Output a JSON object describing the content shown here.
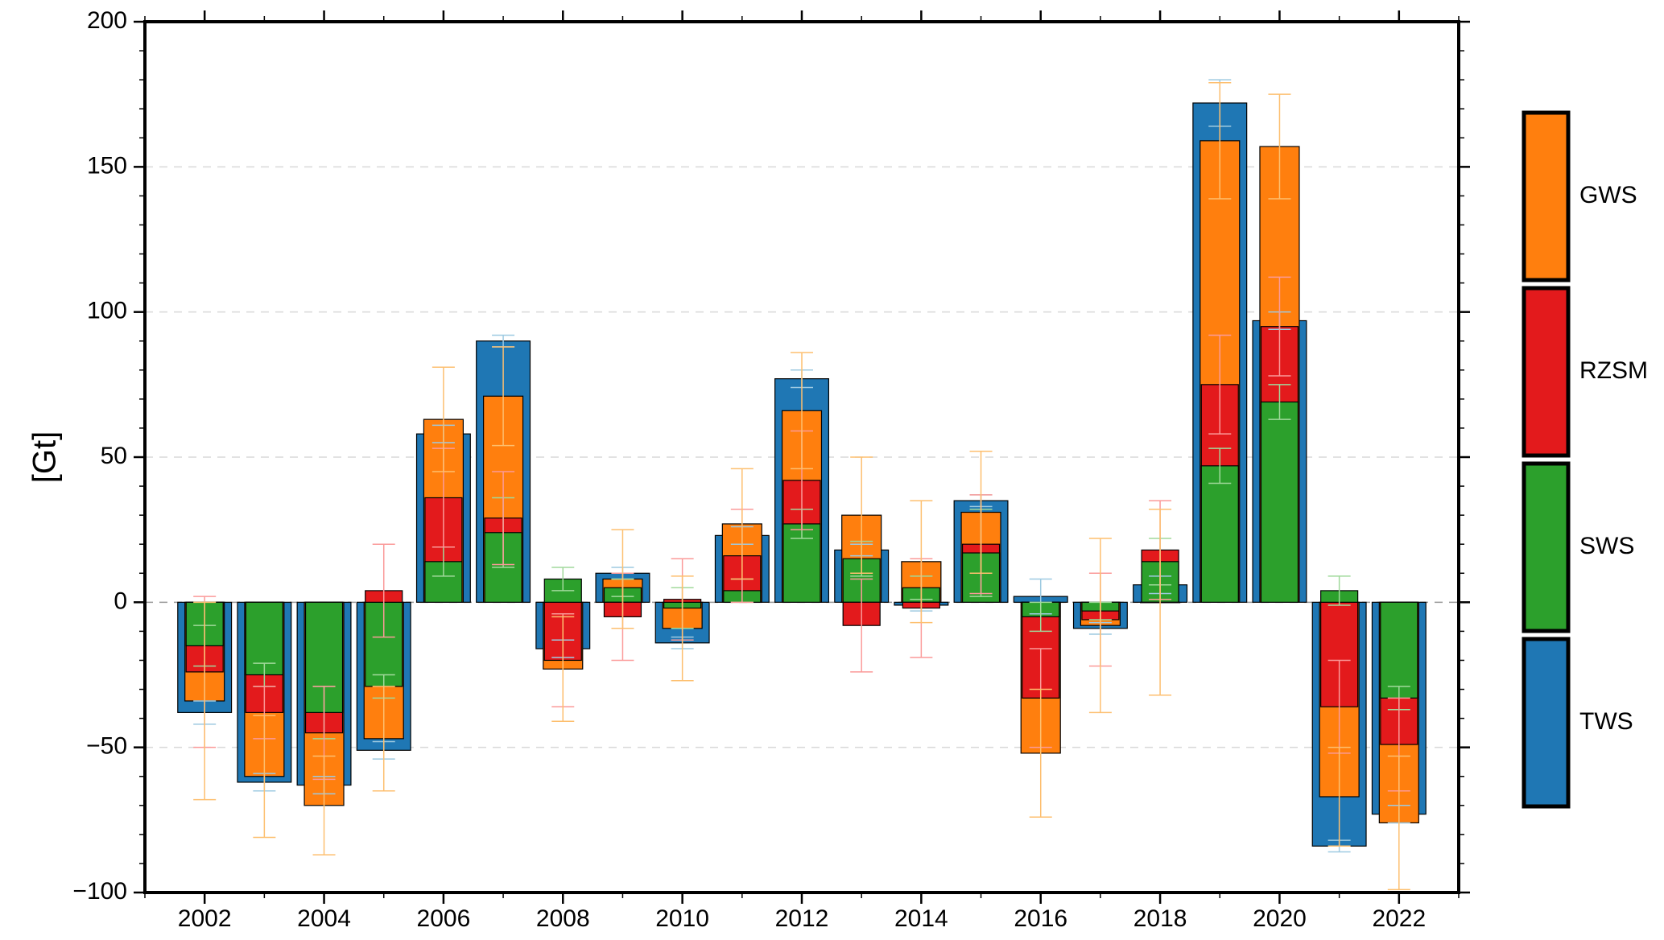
{
  "chart_data": {
    "type": "bar",
    "title": "",
    "xlabel": "",
    "ylabel": "[Gt]",
    "ylim": [
      -100,
      200
    ],
    "yticks": [
      -100,
      -50,
      0,
      50,
      100,
      150,
      200
    ],
    "xlim": [
      2001,
      2023
    ],
    "xtick_labels": [
      "2002",
      "2004",
      "2006",
      "2008",
      "2010",
      "2012",
      "2014",
      "2016",
      "2018",
      "2020",
      "2022"
    ],
    "grid": "horizontal dashed",
    "legend_position": "right",
    "years": [
      2002,
      2003,
      2004,
      2005,
      2006,
      2007,
      2008,
      2009,
      2010,
      2011,
      2012,
      2013,
      2014,
      2015,
      2016,
      2017,
      2018,
      2019,
      2020,
      2021,
      2022
    ],
    "series": [
      {
        "name": "TWS",
        "color": "#1f77b4",
        "errcolor": "#9ecae1",
        "values": [
          -38,
          -62,
          -63,
          -51,
          58,
          90,
          -16,
          10,
          -14,
          23,
          77,
          18,
          -1,
          35,
          2,
          -9,
          6,
          172,
          97,
          -84,
          -73
        ],
        "errors": [
          4,
          3,
          3,
          3,
          3,
          2,
          3,
          2,
          2,
          3,
          3,
          2,
          2,
          2,
          6,
          2,
          3,
          8,
          3,
          2,
          3
        ]
      },
      {
        "name": "SWS",
        "color": "#2ca02c",
        "errcolor": "#a1d99b",
        "values": [
          -15,
          -25,
          -38,
          -29,
          14,
          24,
          8,
          5,
          -2,
          4,
          27,
          15,
          5,
          17,
          -5,
          -3,
          14,
          47,
          69,
          4,
          -33
        ],
        "errors": [
          7,
          4,
          9,
          4,
          5,
          12,
          4,
          3,
          7,
          4,
          5,
          6,
          4,
          15,
          5,
          3,
          8,
          6,
          6,
          5,
          4
        ]
      },
      {
        "name": "RZSM",
        "color": "#e31a1c",
        "errcolor": "#fb9a99",
        "values": [
          -24,
          -38,
          -45,
          4,
          36,
          29,
          -20,
          -5,
          1,
          16,
          42,
          -8,
          -2,
          20,
          -33,
          -6,
          18,
          75,
          95,
          -36,
          -49
        ],
        "errors": [
          26,
          9,
          16,
          16,
          17,
          16,
          16,
          15,
          14,
          16,
          17,
          16,
          17,
          17,
          17,
          16,
          17,
          17,
          17,
          16,
          16
        ]
      },
      {
        "name": "GWS",
        "color": "#ff7f0e",
        "errcolor": "#fdbf6f",
        "values": [
          -34,
          -60,
          -70,
          -47,
          63,
          71,
          -23,
          8,
          -9,
          27,
          66,
          30,
          14,
          31,
          -52,
          -8,
          0,
          159,
          157,
          -67,
          -76
        ],
        "errors": [
          34,
          21,
          17,
          18,
          18,
          17,
          18,
          17,
          18,
          19,
          20,
          20,
          21,
          21,
          22,
          30,
          32,
          20,
          18,
          17,
          23
        ]
      }
    ]
  }
}
